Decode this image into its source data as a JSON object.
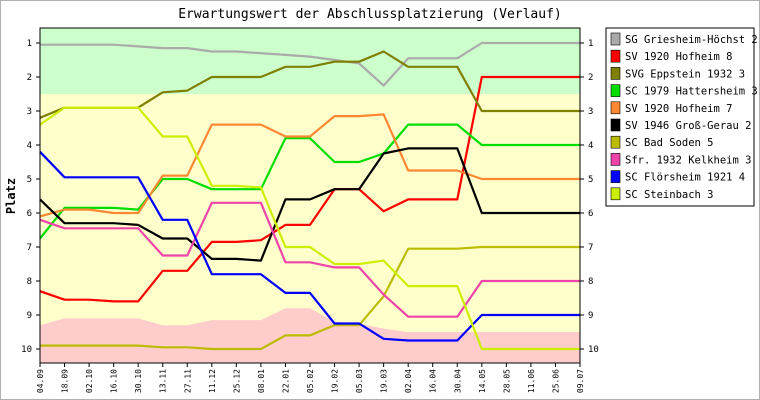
{
  "chart_data": {
    "type": "line",
    "title": "Erwartungswert der Abschlussplatzierung (Verlauf)",
    "ylabel": "Platz",
    "xlabel": "",
    "ylim": [
      1,
      10
    ],
    "y_inverted": true,
    "y_ticks": [
      1,
      2,
      3,
      4,
      5,
      6,
      7,
      8,
      9,
      10
    ],
    "x": [
      "04.09",
      "18.09",
      "02.10",
      "16.10",
      "30.10",
      "13.11",
      "27.11",
      "11.12",
      "25.12",
      "08.01",
      "22.01",
      "05.02",
      "19.02",
      "05.03",
      "19.03",
      "02.04",
      "16.04",
      "30.04",
      "14.05",
      "28.05",
      "11.06",
      "25.06",
      "09.07"
    ],
    "bands": [
      {
        "name": "promotion",
        "from": 0.5,
        "to": 2.5,
        "color": "#ccffcc"
      },
      {
        "name": "midfield",
        "from": 2.5,
        "to": 9.5,
        "color": "#ffffcc"
      },
      {
        "name": "relegation",
        "to": 10.5,
        "color": "#ffcccc",
        "from": [
          9.3,
          9.1,
          9.1,
          9.1,
          9.1,
          9.3,
          9.3,
          9.15,
          9.15,
          9.15,
          8.8,
          8.8,
          9.2,
          9.25,
          9.4,
          9.5,
          9.5,
          9.5,
          9.5,
          9.5,
          9.5,
          9.5,
          9.5
        ]
      }
    ],
    "series": [
      {
        "name": "SG Griesheim-Höchst 2",
        "color": "#aaaaaa",
        "values": [
          1.05,
          1.05,
          1.05,
          1.05,
          1.1,
          1.15,
          1.15,
          1.25,
          1.25,
          1.3,
          1.35,
          1.4,
          1.5,
          1.6,
          2.25,
          1.45,
          1.45,
          1.45,
          1.0,
          1.0,
          1.0,
          1.0,
          1.0
        ]
      },
      {
        "name": "SV 1920 Hofheim 8",
        "color": "#ff0000",
        "values": [
          8.3,
          8.55,
          8.55,
          8.6,
          8.6,
          7.7,
          7.7,
          6.85,
          6.85,
          6.8,
          6.35,
          6.35,
          5.3,
          5.3,
          5.95,
          5.6,
          5.6,
          5.6,
          2.0,
          2.0,
          2.0,
          2.0,
          2.0
        ]
      },
      {
        "name": "SVG Eppstein 1932 3",
        "color": "#808000",
        "values": [
          3.2,
          2.9,
          2.9,
          2.9,
          2.9,
          2.45,
          2.4,
          2.0,
          2.0,
          2.0,
          1.7,
          1.7,
          1.55,
          1.55,
          1.25,
          1.7,
          1.7,
          1.7,
          3.0,
          3.0,
          3.0,
          3.0,
          3.0
        ]
      },
      {
        "name": "SC 1979 Hattersheim 3",
        "color": "#00dd00",
        "values": [
          6.75,
          5.85,
          5.85,
          5.85,
          5.9,
          5.0,
          5.0,
          5.3,
          5.3,
          5.3,
          3.8,
          3.8,
          4.5,
          4.5,
          4.25,
          3.4,
          3.4,
          3.4,
          4.0,
          4.0,
          4.0,
          4.0,
          4.0
        ]
      },
      {
        "name": "SV 1920 Hofheim 7",
        "color": "#ff8833",
        "values": [
          6.1,
          5.9,
          5.9,
          6.0,
          6.0,
          4.9,
          4.9,
          3.4,
          3.4,
          3.4,
          3.75,
          3.75,
          3.15,
          3.15,
          3.1,
          4.75,
          4.75,
          4.75,
          5.0,
          5.0,
          5.0,
          5.0,
          5.0
        ]
      },
      {
        "name": "SV 1946 Groß-Gerau 2",
        "color": "#000000",
        "values": [
          5.6,
          6.3,
          6.3,
          6.3,
          6.35,
          6.75,
          6.75,
          7.35,
          7.35,
          7.4,
          5.6,
          5.6,
          5.3,
          5.3,
          4.25,
          4.1,
          4.1,
          4.1,
          6.0,
          6.0,
          6.0,
          6.0,
          6.0
        ]
      },
      {
        "name": "SC Bad Soden 5",
        "color": "#bbbb00",
        "values": [
          9.9,
          9.9,
          9.9,
          9.9,
          9.9,
          9.95,
          9.95,
          10.0,
          10.0,
          10.0,
          9.6,
          9.6,
          9.3,
          9.3,
          8.45,
          7.05,
          7.05,
          7.05,
          7.0,
          7.0,
          7.0,
          7.0,
          7.0
        ]
      },
      {
        "name": "Sfr. 1932 Kelkheim 3",
        "color": "#ee44aa",
        "values": [
          6.2,
          6.45,
          6.45,
          6.45,
          6.45,
          7.25,
          7.25,
          5.7,
          5.7,
          5.7,
          7.45,
          7.45,
          7.6,
          7.6,
          8.4,
          9.05,
          9.05,
          9.05,
          8.0,
          8.0,
          8.0,
          8.0,
          8.0
        ]
      },
      {
        "name": "SC Flörsheim 1921 4",
        "color": "#0000ff",
        "values": [
          4.2,
          4.95,
          4.95,
          4.95,
          4.95,
          6.2,
          6.2,
          7.8,
          7.8,
          7.8,
          8.35,
          8.35,
          9.25,
          9.25,
          9.7,
          9.75,
          9.75,
          9.75,
          9.0,
          9.0,
          9.0,
          9.0,
          9.0
        ]
      },
      {
        "name": "SC Steinbach 3",
        "color": "#ccee00",
        "values": [
          3.4,
          2.9,
          2.9,
          2.9,
          2.9,
          3.75,
          3.75,
          5.2,
          5.2,
          5.25,
          7.0,
          7.0,
          7.5,
          7.5,
          7.4,
          8.15,
          8.15,
          8.15,
          10.0,
          10.0,
          10.0,
          10.0,
          10.0
        ]
      }
    ],
    "legend_position": "right"
  }
}
